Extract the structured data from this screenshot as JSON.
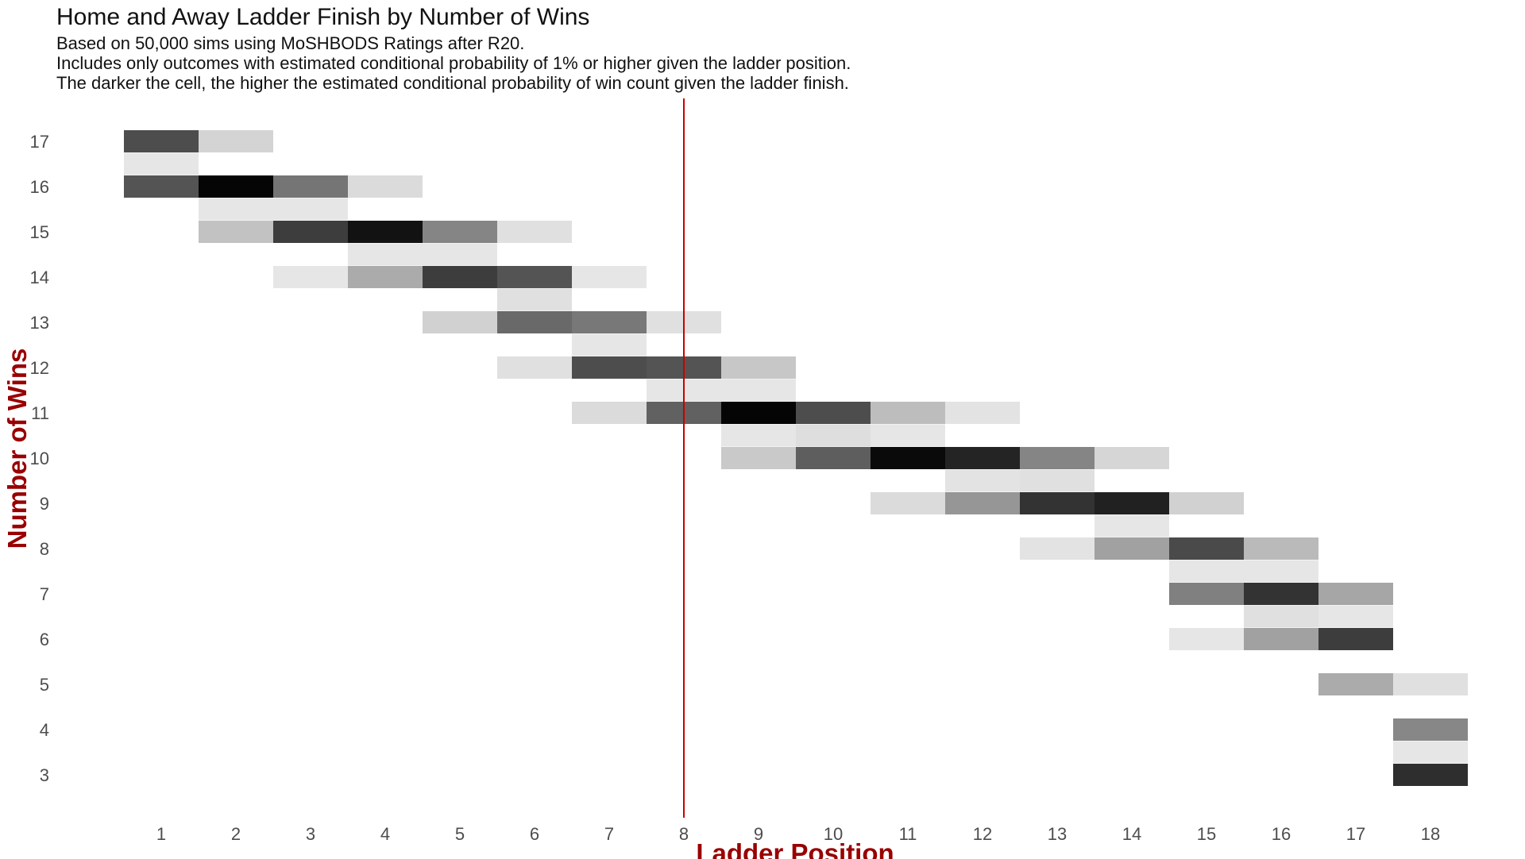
{
  "chart_data": {
    "type": "heatmap",
    "title": "Home and Away Ladder Finish by Number of Wins",
    "subtitle": [
      "Based on 50,000 sims using MoSHBODS Ratings after R20.",
      "Includes only outcomes with estimated conditional probability of 1% or higher given the ladder position.",
      "The darker the cell, the higher the estimated conditional probability of win count given the ladder finish."
    ],
    "xlabel": "Ladder Position",
    "ylabel": "Number of Wins",
    "x_ticks": [
      "1",
      "2",
      "3",
      "4",
      "5",
      "6",
      "7",
      "8",
      "9",
      "10",
      "11",
      "12",
      "13",
      "14",
      "15",
      "16",
      "17",
      "18"
    ],
    "y_ticks": [
      "17",
      "16",
      "15",
      "14",
      "13",
      "12",
      "11",
      "10",
      "9",
      "8",
      "7",
      "6",
      "5",
      "4",
      "3"
    ],
    "xlim": [
      0.5,
      18.5
    ],
    "ylim": [
      2.5,
      17.5
    ],
    "reference_line": {
      "x": 8,
      "color": "#cc0000"
    },
    "colors": {
      "axis_title": "#990000",
      "tick_label": "#4d4d4d",
      "title": "#111111",
      "cell_base": "#000000"
    },
    "cells": [
      {
        "x": 1,
        "y": 17,
        "intensity": 0.7
      },
      {
        "x": 1,
        "y": 16.5,
        "intensity": 0.1
      },
      {
        "x": 1,
        "y": 16,
        "intensity": 0.67
      },
      {
        "x": 2,
        "y": 17,
        "intensity": 0.17
      },
      {
        "x": 2,
        "y": 16,
        "intensity": 0.98
      },
      {
        "x": 2,
        "y": 15.5,
        "intensity": 0.1
      },
      {
        "x": 2,
        "y": 15,
        "intensity": 0.24
      },
      {
        "x": 3,
        "y": 16,
        "intensity": 0.54
      },
      {
        "x": 3,
        "y": 15.5,
        "intensity": 0.1
      },
      {
        "x": 3,
        "y": 15,
        "intensity": 0.76
      },
      {
        "x": 3,
        "y": 14,
        "intensity": 0.1
      },
      {
        "x": 4,
        "y": 16,
        "intensity": 0.14
      },
      {
        "x": 4,
        "y": 15,
        "intensity": 0.93
      },
      {
        "x": 4,
        "y": 14.5,
        "intensity": 0.1
      },
      {
        "x": 4,
        "y": 14,
        "intensity": 0.33
      },
      {
        "x": 5,
        "y": 15,
        "intensity": 0.48
      },
      {
        "x": 5,
        "y": 14.5,
        "intensity": 0.1
      },
      {
        "x": 5,
        "y": 14,
        "intensity": 0.76
      },
      {
        "x": 5,
        "y": 13,
        "intensity": 0.18
      },
      {
        "x": 6,
        "y": 15,
        "intensity": 0.12
      },
      {
        "x": 6,
        "y": 14,
        "intensity": 0.67
      },
      {
        "x": 6,
        "y": 13.5,
        "intensity": 0.12
      },
      {
        "x": 6,
        "y": 13,
        "intensity": 0.59
      },
      {
        "x": 6,
        "y": 12,
        "intensity": 0.12
      },
      {
        "x": 7,
        "y": 14,
        "intensity": 0.1
      },
      {
        "x": 7,
        "y": 13,
        "intensity": 0.53
      },
      {
        "x": 7,
        "y": 12.5,
        "intensity": 0.1
      },
      {
        "x": 7,
        "y": 12,
        "intensity": 0.7
      },
      {
        "x": 7,
        "y": 11,
        "intensity": 0.14
      },
      {
        "x": 8,
        "y": 13,
        "intensity": 0.12
      },
      {
        "x": 8,
        "y": 12,
        "intensity": 0.67
      },
      {
        "x": 8,
        "y": 11.5,
        "intensity": 0.1
      },
      {
        "x": 8,
        "y": 11,
        "intensity": 0.62
      },
      {
        "x": 9,
        "y": 12,
        "intensity": 0.22
      },
      {
        "x": 9,
        "y": 11.5,
        "intensity": 0.1
      },
      {
        "x": 9,
        "y": 11,
        "intensity": 0.98
      },
      {
        "x": 9,
        "y": 10.5,
        "intensity": 0.1
      },
      {
        "x": 9,
        "y": 10,
        "intensity": 0.21
      },
      {
        "x": 10,
        "y": 11,
        "intensity": 0.7
      },
      {
        "x": 10,
        "y": 10.5,
        "intensity": 0.13
      },
      {
        "x": 10,
        "y": 10,
        "intensity": 0.63
      },
      {
        "x": 11,
        "y": 11,
        "intensity": 0.26
      },
      {
        "x": 11,
        "y": 10.5,
        "intensity": 0.1
      },
      {
        "x": 11,
        "y": 10,
        "intensity": 0.96
      },
      {
        "x": 11,
        "y": 9,
        "intensity": 0.14
      },
      {
        "x": 12,
        "y": 11,
        "intensity": 0.11
      },
      {
        "x": 12,
        "y": 10,
        "intensity": 0.86
      },
      {
        "x": 12,
        "y": 9.5,
        "intensity": 0.11
      },
      {
        "x": 12,
        "y": 9,
        "intensity": 0.41
      },
      {
        "x": 13,
        "y": 10,
        "intensity": 0.48
      },
      {
        "x": 13,
        "y": 9.5,
        "intensity": 0.12
      },
      {
        "x": 13,
        "y": 9,
        "intensity": 0.8
      },
      {
        "x": 13,
        "y": 8,
        "intensity": 0.11
      },
      {
        "x": 14,
        "y": 10,
        "intensity": 0.16
      },
      {
        "x": 14,
        "y": 9,
        "intensity": 0.87
      },
      {
        "x": 14,
        "y": 8.5,
        "intensity": 0.1
      },
      {
        "x": 14,
        "y": 8,
        "intensity": 0.37
      },
      {
        "x": 15,
        "y": 9,
        "intensity": 0.18
      },
      {
        "x": 15,
        "y": 8,
        "intensity": 0.71
      },
      {
        "x": 15,
        "y": 7.5,
        "intensity": 0.1
      },
      {
        "x": 15,
        "y": 7,
        "intensity": 0.5
      },
      {
        "x": 15,
        "y": 6,
        "intensity": 0.1
      },
      {
        "x": 16,
        "y": 8,
        "intensity": 0.27
      },
      {
        "x": 16,
        "y": 7.5,
        "intensity": 0.1
      },
      {
        "x": 16,
        "y": 7,
        "intensity": 0.8
      },
      {
        "x": 16,
        "y": 6.5,
        "intensity": 0.12
      },
      {
        "x": 16,
        "y": 6,
        "intensity": 0.37
      },
      {
        "x": 17,
        "y": 7,
        "intensity": 0.35
      },
      {
        "x": 17,
        "y": 6.5,
        "intensity": 0.1
      },
      {
        "x": 17,
        "y": 6,
        "intensity": 0.76
      },
      {
        "x": 17,
        "y": 5,
        "intensity": 0.33
      },
      {
        "x": 18,
        "y": 5,
        "intensity": 0.12
      },
      {
        "x": 18,
        "y": 4,
        "intensity": 0.47
      },
      {
        "x": 18,
        "y": 3.5,
        "intensity": 0.1
      },
      {
        "x": 18,
        "y": 3,
        "intensity": 0.82
      }
    ]
  }
}
